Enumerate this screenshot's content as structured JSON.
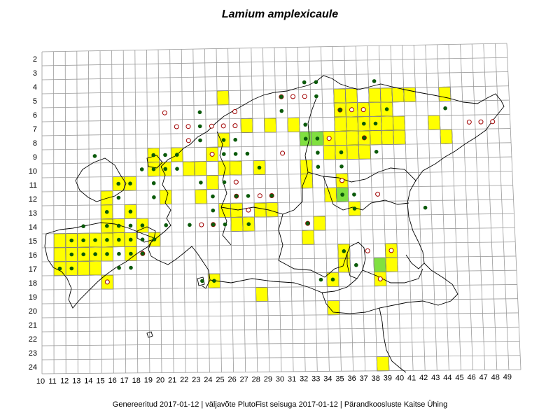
{
  "title": "Lamium amplexicaule",
  "footer": "Genereeritud 2017-01-12  |  väljavõte PlutoFist seisuga 2017-01-12  |  Pärandkoosluste Kaitse Ühing",
  "axis": {
    "x_ticks": [
      10,
      11,
      12,
      13,
      14,
      15,
      16,
      17,
      18,
      19,
      20,
      21,
      22,
      23,
      24,
      25,
      26,
      27,
      28,
      29,
      30,
      31,
      32,
      33,
      34,
      35,
      36,
      37,
      38,
      39,
      40,
      41,
      42,
      43,
      44,
      45,
      46,
      47,
      48,
      49
    ],
    "y_ticks": [
      2,
      3,
      4,
      5,
      6,
      7,
      8,
      9,
      10,
      11,
      12,
      13,
      14,
      15,
      16,
      17,
      18,
      19,
      20,
      21,
      22,
      23,
      24
    ]
  },
  "legend_colors": {
    "yellow_cell": "#ffff00",
    "green_cell": "#80e040",
    "filled_dot": "#0a5a0a",
    "open_circle": "#a00000"
  },
  "occurrences": {
    "yellow_cells": [
      [
        25,
        5
      ],
      [
        35,
        5
      ],
      [
        36,
        5
      ],
      [
        38,
        5
      ],
      [
        39,
        5
      ],
      [
        40,
        5
      ],
      [
        41,
        5
      ],
      [
        44,
        5
      ],
      [
        35,
        6
      ],
      [
        36,
        6
      ],
      [
        37,
        6
      ],
      [
        38,
        6
      ],
      [
        39,
        6
      ],
      [
        27,
        7
      ],
      [
        29,
        7
      ],
      [
        31,
        7
      ],
      [
        35,
        7
      ],
      [
        36,
        7
      ],
      [
        37,
        7
      ],
      [
        38,
        7
      ],
      [
        39,
        7
      ],
      [
        40,
        7
      ],
      [
        43,
        7
      ],
      [
        25,
        8
      ],
      [
        34,
        8
      ],
      [
        35,
        8
      ],
      [
        36,
        8
      ],
      [
        37,
        8
      ],
      [
        38,
        8
      ],
      [
        39,
        8
      ],
      [
        40,
        8
      ],
      [
        44,
        8
      ],
      [
        19,
        9
      ],
      [
        21,
        9
      ],
      [
        24,
        9
      ],
      [
        34,
        9
      ],
      [
        35,
        9
      ],
      [
        36,
        9
      ],
      [
        37,
        9
      ],
      [
        19,
        10
      ],
      [
        20,
        10
      ],
      [
        22,
        10
      ],
      [
        23,
        10
      ],
      [
        25,
        10
      ],
      [
        26,
        10
      ],
      [
        28,
        10
      ],
      [
        32,
        10
      ],
      [
        16,
        11
      ],
      [
        17,
        11
      ],
      [
        24,
        11
      ],
      [
        32,
        11
      ],
      [
        35,
        11
      ],
      [
        15,
        12
      ],
      [
        20,
        12
      ],
      [
        23,
        12
      ],
      [
        34,
        12
      ],
      [
        35,
        12
      ],
      [
        15,
        13
      ],
      [
        17,
        13
      ],
      [
        25,
        13
      ],
      [
        26,
        13
      ],
      [
        28,
        13
      ],
      [
        29,
        13
      ],
      [
        36,
        13
      ],
      [
        15,
        14
      ],
      [
        16,
        14
      ],
      [
        18,
        14
      ],
      [
        26,
        14
      ],
      [
        27,
        14
      ],
      [
        33,
        14
      ],
      [
        11,
        15
      ],
      [
        12,
        15
      ],
      [
        13,
        15
      ],
      [
        14,
        15
      ],
      [
        15,
        15
      ],
      [
        16,
        15
      ],
      [
        17,
        15
      ],
      [
        19,
        15
      ],
      [
        32,
        15
      ],
      [
        11,
        16
      ],
      [
        12,
        16
      ],
      [
        13,
        16
      ],
      [
        14,
        16
      ],
      [
        15,
        16
      ],
      [
        17,
        16
      ],
      [
        35,
        16
      ],
      [
        39,
        16
      ],
      [
        11,
        17
      ],
      [
        12,
        17
      ],
      [
        13,
        17
      ],
      [
        14,
        17
      ],
      [
        35,
        17
      ],
      [
        39,
        17
      ],
      [
        15,
        18
      ],
      [
        24,
        18
      ],
      [
        34,
        18
      ],
      [
        38,
        18
      ],
      [
        28,
        19
      ],
      [
        34,
        20
      ],
      [
        38,
        24
      ]
    ],
    "green_cells": [
      [
        32,
        8
      ],
      [
        33,
        8
      ],
      [
        35,
        12
      ],
      [
        38,
        17
      ]
    ],
    "filled_dots": [
      [
        32,
        4
      ],
      [
        33,
        4
      ],
      [
        38,
        4
      ],
      [
        30,
        5
      ],
      [
        33,
        5
      ],
      [
        23,
        6
      ],
      [
        30,
        6
      ],
      [
        35,
        6
      ],
      [
        39,
        6
      ],
      [
        44,
        6
      ],
      [
        23,
        7
      ],
      [
        32,
        7
      ],
      [
        37,
        7
      ],
      [
        38,
        7
      ],
      [
        23,
        8
      ],
      [
        25,
        8
      ],
      [
        26,
        8
      ],
      [
        32,
        8
      ],
      [
        33,
        8
      ],
      [
        37,
        8
      ],
      [
        14,
        9
      ],
      [
        19,
        9
      ],
      [
        20,
        9
      ],
      [
        21,
        9
      ],
      [
        25,
        9
      ],
      [
        26,
        9
      ],
      [
        27,
        9
      ],
      [
        33,
        9
      ],
      [
        35,
        9
      ],
      [
        38,
        9
      ],
      [
        18,
        10
      ],
      [
        19,
        10
      ],
      [
        20,
        10
      ],
      [
        21,
        10
      ],
      [
        28,
        10
      ],
      [
        33,
        10
      ],
      [
        35,
        10
      ],
      [
        16,
        11
      ],
      [
        17,
        11
      ],
      [
        19,
        11
      ],
      [
        23,
        11
      ],
      [
        25,
        11
      ],
      [
        16,
        12
      ],
      [
        19,
        12
      ],
      [
        24,
        12
      ],
      [
        26,
        12
      ],
      [
        27,
        12
      ],
      [
        29,
        12
      ],
      [
        35,
        12
      ],
      [
        36,
        12
      ],
      [
        15,
        13
      ],
      [
        17,
        13
      ],
      [
        24,
        13
      ],
      [
        36,
        13
      ],
      [
        42,
        13
      ],
      [
        13,
        14
      ],
      [
        15,
        14
      ],
      [
        16,
        14
      ],
      [
        17,
        14
      ],
      [
        18,
        14
      ],
      [
        20,
        14
      ],
      [
        22,
        14
      ],
      [
        24,
        14
      ],
      [
        25,
        14
      ],
      [
        27,
        14
      ],
      [
        32,
        14
      ],
      [
        12,
        15
      ],
      [
        13,
        15
      ],
      [
        14,
        15
      ],
      [
        15,
        15
      ],
      [
        16,
        15
      ],
      [
        17,
        15
      ],
      [
        18,
        15
      ],
      [
        19,
        15
      ],
      [
        12,
        16
      ],
      [
        13,
        16
      ],
      [
        14,
        16
      ],
      [
        15,
        16
      ],
      [
        16,
        16
      ],
      [
        17,
        16
      ],
      [
        18,
        16
      ],
      [
        35,
        16
      ],
      [
        11,
        17
      ],
      [
        12,
        17
      ],
      [
        16,
        17
      ],
      [
        17,
        17
      ],
      [
        36,
        17
      ],
      [
        23,
        18
      ],
      [
        24,
        18
      ],
      [
        33,
        18
      ],
      [
        34,
        18
      ]
    ],
    "open_circles": [
      [
        30,
        5
      ],
      [
        31,
        5
      ],
      [
        32,
        5
      ],
      [
        20,
        6
      ],
      [
        26,
        6
      ],
      [
        35,
        6
      ],
      [
        36,
        6
      ],
      [
        37,
        6
      ],
      [
        21,
        7
      ],
      [
        22,
        7
      ],
      [
        24,
        7
      ],
      [
        25,
        7
      ],
      [
        26,
        7
      ],
      [
        46,
        7
      ],
      [
        47,
        7
      ],
      [
        48,
        7
      ],
      [
        22,
        8
      ],
      [
        34,
        8
      ],
      [
        37,
        8
      ],
      [
        24,
        9
      ],
      [
        30,
        9
      ],
      [
        26,
        11
      ],
      [
        35,
        11
      ],
      [
        26,
        12
      ],
      [
        28,
        12
      ],
      [
        29,
        12
      ],
      [
        38,
        12
      ],
      [
        27,
        13
      ],
      [
        23,
        14
      ],
      [
        24,
        14
      ],
      [
        32,
        14
      ],
      [
        18,
        16
      ],
      [
        37,
        16
      ],
      [
        39,
        16
      ],
      [
        15,
        18
      ],
      [
        38,
        18
      ]
    ]
  }
}
